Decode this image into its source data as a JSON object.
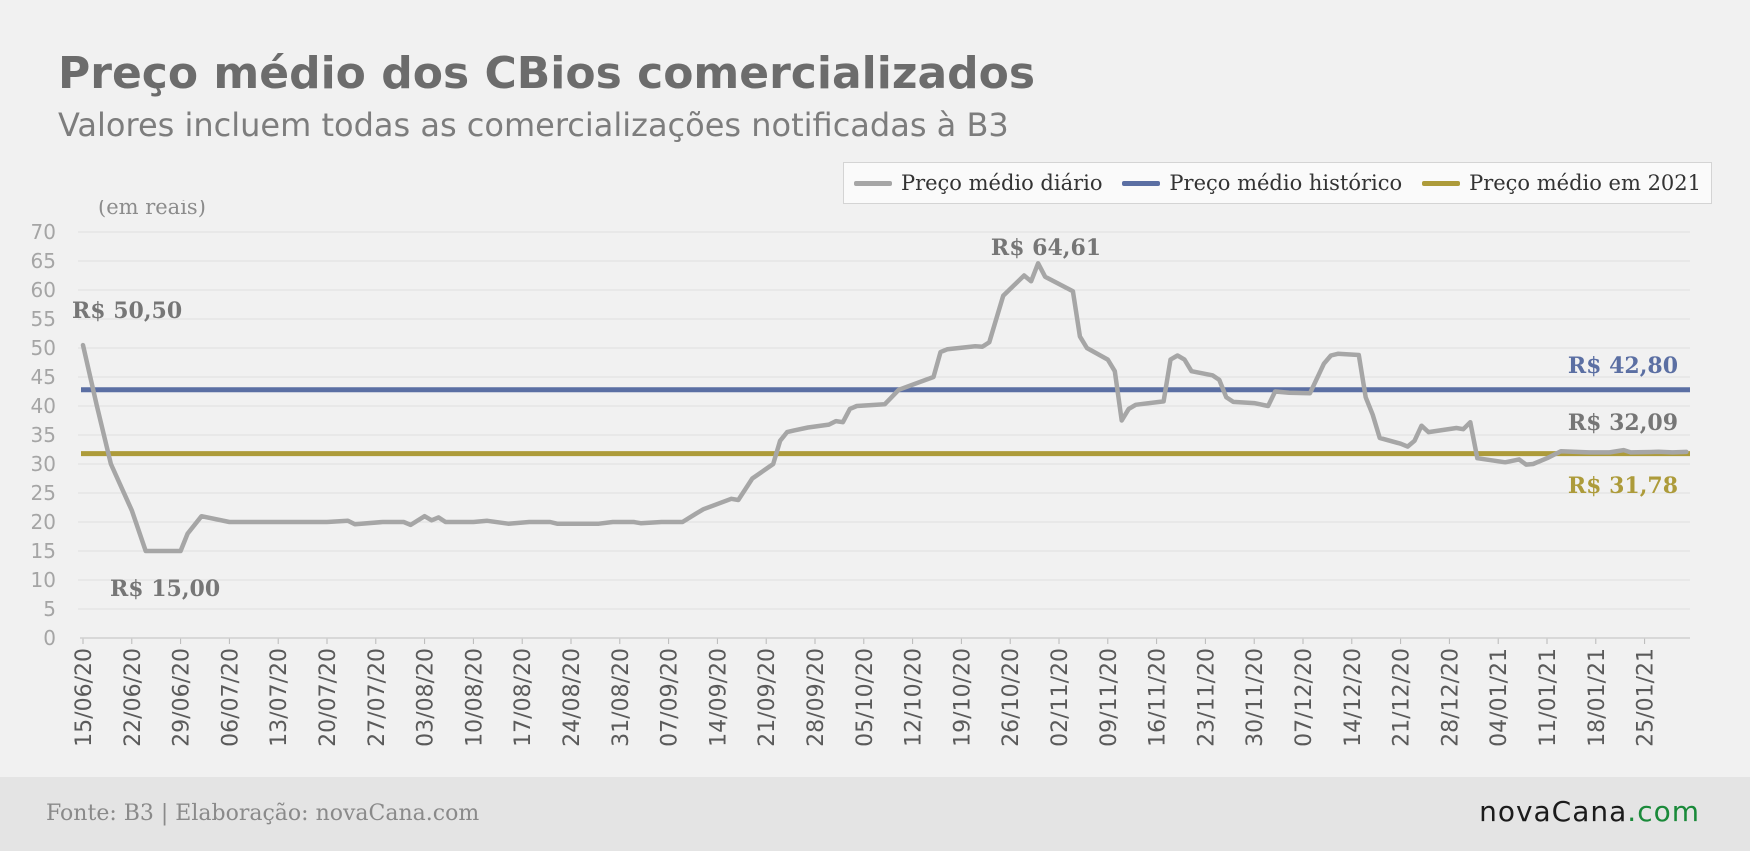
{
  "header": {
    "title": "Preço médio dos CBios comercializados",
    "subtitle": "Valores incluem todas as comercializações notificadas à B3"
  },
  "footer": {
    "source": "Fonte: B3 | Elaboração: novaCana.com",
    "brand_main": "novaCana",
    "brand_tld": ".com"
  },
  "chart_data": {
    "type": "line",
    "unit_label": "(em reais)",
    "yticks": [
      0,
      5,
      10,
      15,
      20,
      25,
      30,
      35,
      40,
      45,
      50,
      55,
      60,
      65,
      70
    ],
    "ylim": [
      0,
      70
    ],
    "grid": true,
    "legend_position": "top-right",
    "x_tick_labels": [
      "15/06/20",
      "22/06/20",
      "29/06/20",
      "06/07/20",
      "13/07/20",
      "20/07/20",
      "27/07/20",
      "03/08/20",
      "10/08/20",
      "17/08/20",
      "24/08/20",
      "31/08/20",
      "07/09/20",
      "14/09/20",
      "21/09/20",
      "28/09/20",
      "05/10/20",
      "12/10/20",
      "19/10/20",
      "26/10/20",
      "02/11/20",
      "09/11/20",
      "16/11/20",
      "23/11/20",
      "30/11/20",
      "07/12/20",
      "14/12/20",
      "21/12/20",
      "28/12/20",
      "04/01/21",
      "11/01/21",
      "18/01/21",
      "25/01/21"
    ],
    "series": [
      {
        "name": "Preço médio diário",
        "color": "#a6a6a6",
        "points": [
          [
            "15/06/20",
            50.5
          ],
          [
            "17/06/20",
            40
          ],
          [
            "19/06/20",
            30
          ],
          [
            "22/06/20",
            22
          ],
          [
            "24/06/20",
            15
          ],
          [
            "26/06/20",
            15
          ],
          [
            "29/06/20",
            15
          ],
          [
            "30/06/20",
            18
          ],
          [
            "02/07/20",
            21
          ],
          [
            "06/07/20",
            20
          ],
          [
            "10/07/20",
            20
          ],
          [
            "15/07/20",
            20
          ],
          [
            "20/07/20",
            20
          ],
          [
            "23/07/20",
            20.2
          ],
          [
            "24/07/20",
            19.6
          ],
          [
            "28/07/20",
            20
          ],
          [
            "31/07/20",
            20
          ],
          [
            "01/08/20",
            19.5
          ],
          [
            "03/08/20",
            21
          ],
          [
            "04/08/20",
            20.3
          ],
          [
            "05/08/20",
            20.8
          ],
          [
            "06/08/20",
            20
          ],
          [
            "10/08/20",
            20
          ],
          [
            "12/08/20",
            20.2
          ],
          [
            "15/08/20",
            19.7
          ],
          [
            "18/08/20",
            20
          ],
          [
            "21/08/20",
            20
          ],
          [
            "22/08/20",
            19.7
          ],
          [
            "28/08/20",
            19.7
          ],
          [
            "30/08/20",
            20
          ],
          [
            "02/09/20",
            20
          ],
          [
            "03/09/20",
            19.8
          ],
          [
            "06/09/20",
            20
          ],
          [
            "09/09/20",
            20
          ],
          [
            "11/09/20",
            21.5
          ],
          [
            "12/09/20",
            22.2
          ],
          [
            "16/09/20",
            24
          ],
          [
            "17/09/20",
            23.8
          ],
          [
            "19/09/20",
            27.5
          ],
          [
            "22/09/20",
            30
          ],
          [
            "23/09/20",
            34
          ],
          [
            "24/09/20",
            35.5
          ],
          [
            "25/09/20",
            35.8
          ],
          [
            "27/09/20",
            36.3
          ],
          [
            "30/09/20",
            36.8
          ],
          [
            "01/10/20",
            37.4
          ],
          [
            "02/10/20",
            37.2
          ],
          [
            "03/10/20",
            39.5
          ],
          [
            "04/10/20",
            40
          ],
          [
            "08/10/20",
            40.3
          ],
          [
            "10/10/20",
            42.8
          ],
          [
            "15/10/20",
            45
          ],
          [
            "16/10/20",
            49.3
          ],
          [
            "17/10/20",
            49.8
          ],
          [
            "21/10/20",
            50.3
          ],
          [
            "22/10/20",
            50.2
          ],
          [
            "23/10/20",
            51
          ],
          [
            "25/10/20",
            59
          ],
          [
            "28/10/20",
            62.5
          ],
          [
            "29/10/20",
            61.5
          ],
          [
            "30/10/20",
            64.61
          ],
          [
            "31/10/20",
            62.3
          ],
          [
            "04/11/20",
            59.8
          ],
          [
            "05/11/20",
            52
          ],
          [
            "06/11/20",
            50
          ],
          [
            "09/11/20",
            48
          ],
          [
            "10/11/20",
            46
          ],
          [
            "11/11/20",
            37.5
          ],
          [
            "12/11/20",
            39.5
          ],
          [
            "13/11/20",
            40.2
          ],
          [
            "17/11/20",
            40.8
          ],
          [
            "18/11/20",
            48
          ],
          [
            "19/11/20",
            48.7
          ],
          [
            "20/11/20",
            48
          ],
          [
            "21/11/20",
            46
          ],
          [
            "24/11/20",
            45.3
          ],
          [
            "25/11/20",
            44.5
          ],
          [
            "26/11/20",
            41.5
          ],
          [
            "27/11/20",
            40.7
          ],
          [
            "30/11/20",
            40.5
          ],
          [
            "02/12/20",
            40
          ],
          [
            "03/12/20",
            42.5
          ],
          [
            "05/12/20",
            42.3
          ],
          [
            "08/12/20",
            42.2
          ],
          [
            "10/12/20",
            47.3
          ],
          [
            "11/12/20",
            48.7
          ],
          [
            "12/12/20",
            49
          ],
          [
            "15/12/20",
            48.8
          ],
          [
            "16/12/20",
            41.5
          ],
          [
            "17/12/20",
            38.5
          ],
          [
            "18/12/20",
            34.5
          ],
          [
            "21/12/20",
            33.5
          ],
          [
            "22/12/20",
            33
          ],
          [
            "23/12/20",
            34
          ],
          [
            "24/12/20",
            36.6
          ],
          [
            "25/12/20",
            35.5
          ],
          [
            "29/12/20",
            36.2
          ],
          [
            "30/12/20",
            36
          ],
          [
            "31/12/20",
            37.2
          ],
          [
            "01/01/21",
            31
          ],
          [
            "05/01/21",
            30.3
          ],
          [
            "07/01/21",
            30.8
          ],
          [
            "08/01/21",
            29.9
          ],
          [
            "09/01/21",
            30
          ],
          [
            "11/01/21",
            31
          ],
          [
            "13/01/21",
            32.2
          ],
          [
            "17/01/21",
            32
          ],
          [
            "20/01/21",
            32
          ],
          [
            "22/01/21",
            32.4
          ],
          [
            "23/01/21",
            32
          ],
          [
            "27/01/21",
            32.1
          ],
          [
            "29/01/21",
            32
          ],
          [
            "31/01/21",
            32.09
          ]
        ]
      },
      {
        "name": "Preço médio histórico",
        "color": "#5b6fa3",
        "value": 42.8
      },
      {
        "name": "Preço médio em 2021",
        "color": "#ad9b3a",
        "value": 31.78
      }
    ],
    "annotations": [
      {
        "text": "R$ 50,50",
        "color": "#767676"
      },
      {
        "text": "R$ 15,00",
        "color": "#767676"
      },
      {
        "text": "R$ 64,61",
        "color": "#767676"
      },
      {
        "text": "R$ 42,80",
        "color": "#5b6fa3"
      },
      {
        "text": "R$ 32,09",
        "color": "#767676"
      },
      {
        "text": "R$ 31,78",
        "color": "#ad9b3a"
      }
    ]
  }
}
